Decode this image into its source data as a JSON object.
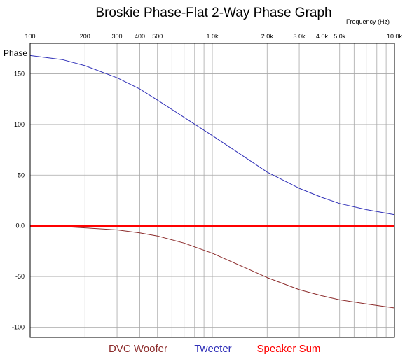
{
  "chart_data": {
    "type": "line",
    "title": "Broskie Phase-Flat 2-Way Phase Graph",
    "xlabel": "Frequency   (Hz)",
    "ylabel": "Phase",
    "x_scale": "log",
    "xlim": [
      100,
      10000
    ],
    "ylim": [
      -110,
      180
    ],
    "grid": true,
    "x_tick_values": [
      100,
      200,
      300,
      400,
      500,
      1000,
      2000,
      3000,
      4000,
      5000,
      10000
    ],
    "x_tick_labels": [
      "100",
      "200",
      "300",
      "400",
      "500",
      "1.0k",
      "2.0k",
      "3.0k",
      "4.0k",
      "5.0k",
      "10.0k"
    ],
    "y_tick_values": [
      150,
      100,
      50,
      0,
      -50,
      -100
    ],
    "y_tick_labels": [
      "150",
      "100",
      "50",
      "0.0",
      "-50",
      "-100"
    ],
    "legend_position": "bottom",
    "series": [
      {
        "name": "DVC Woofer",
        "color": "#8b2a2a",
        "x": [
          160,
          200,
          300,
          400,
          500,
          700,
          1000,
          1500,
          2000,
          3000,
          4000,
          5000,
          7000,
          10000
        ],
        "y": [
          -1,
          -2,
          -4,
          -7,
          -10,
          -17,
          -27,
          -41,
          -51,
          -63,
          -69,
          -73,
          -77,
          -81
        ]
      },
      {
        "name": "Tweeter",
        "color": "#3030b8",
        "x": [
          100,
          150,
          200,
          300,
          400,
          500,
          700,
          1000,
          1500,
          2000,
          3000,
          4000,
          5000,
          7000,
          10000
        ],
        "y": [
          168,
          164,
          158,
          146,
          135,
          124,
          107,
          89,
          68,
          53,
          37,
          28,
          22,
          16,
          11
        ]
      },
      {
        "name": "Speaker Sum",
        "color": "#ff0000",
        "x": [
          100,
          10000
        ],
        "y": [
          0,
          0
        ]
      }
    ]
  }
}
